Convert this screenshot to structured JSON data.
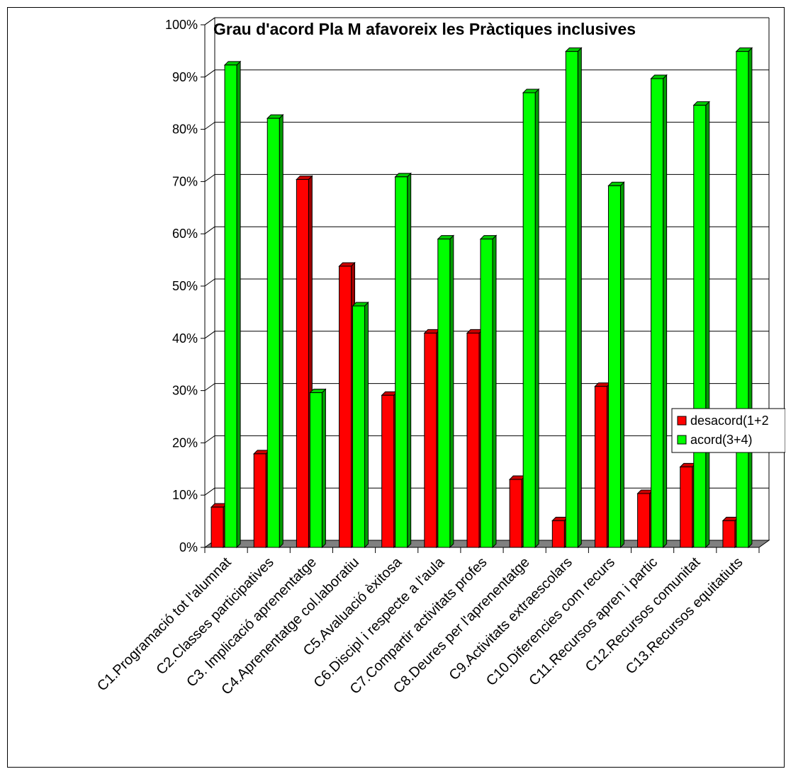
{
  "chart_data": {
    "type": "bar",
    "title": "Grau d'acord Pla M afavoreix les Pràctiques inclusives",
    "xlabel": "",
    "ylabel": "",
    "ylim": [
      0,
      100
    ],
    "y_ticks": [
      "0%",
      "10%",
      "20%",
      "30%",
      "40%",
      "50%",
      "60%",
      "70%",
      "80%",
      "90%",
      "100%"
    ],
    "grid": true,
    "legend_position": "right",
    "categories": [
      "C1.Programació tot l'alumnat",
      "C2.Classes participatives",
      "C3. Implicació aprenentatge",
      "C4.Aprenentatge col.laboratiu",
      "C5.Avaluació èxitosa",
      "C6.Discipl i respecte a l'aula",
      "C7.Compartir activitats profes",
      "C8.Deures per l'aprenentatge",
      "C9.Activitats extraescolars",
      "C10.Diferencies com recurs",
      "C11.Recursos apren i partic",
      "C12.Recursos comunitat",
      "C13.Recursos equitatiuts"
    ],
    "series": [
      {
        "name": "desacord(1+2",
        "color": "#ff0000",
        "values": [
          7.7,
          17.9,
          70.4,
          53.8,
          29.1,
          41.0,
          41.0,
          13.0,
          5.1,
          30.8,
          10.3,
          15.4,
          5.1
        ]
      },
      {
        "name": "acord(3+4)",
        "color": "#00ff00",
        "values": [
          92.3,
          82.1,
          29.6,
          46.2,
          70.9,
          59.0,
          59.0,
          87.0,
          94.9,
          69.2,
          89.7,
          84.6,
          94.9
        ]
      }
    ]
  }
}
